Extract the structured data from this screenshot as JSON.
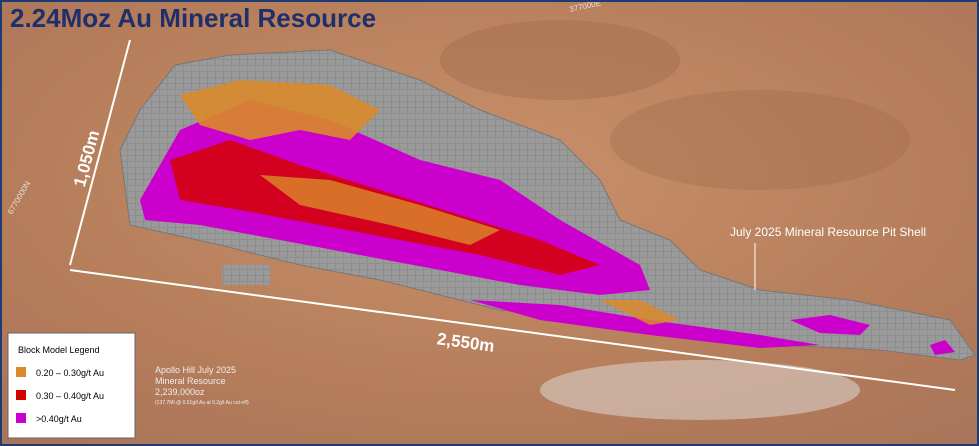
{
  "header": {
    "title": "2.24Moz Au Mineral Resource"
  },
  "dimensions": {
    "width_label": "1,050m",
    "length_label": "2,550m"
  },
  "grid_labels": [
    "377000E",
    "6770000N"
  ],
  "annotation": "July 2025 Mineral Resource Pit Shell",
  "legend": {
    "title": "Block Model Legend",
    "items": [
      {
        "label": "0.20 – 0.30g/t Au",
        "color": "#d98a2a"
      },
      {
        "label": "0.30 – 0.40g/t Au",
        "color": "#d40000"
      },
      {
        "label": ">0.40g/t Au",
        "color": "#cc00cc"
      }
    ]
  },
  "summary": [
    "Apollo Hill July 2025",
    "Mineral Resource",
    "2,239,000oz",
    "(137.7Mt @ 0.51g/t Au at 0.2g/t Au cut-off)"
  ]
}
